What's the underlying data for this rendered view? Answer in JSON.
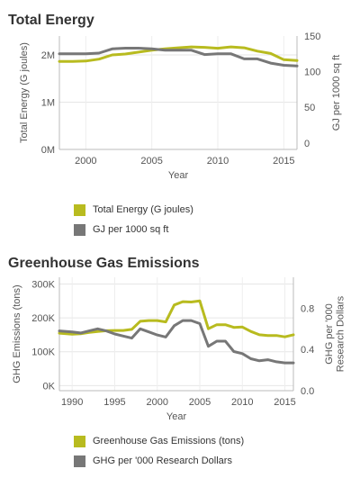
{
  "charts": [
    {
      "title": "Total Energy",
      "chart_data": {
        "type": "line",
        "title": "Total Energy",
        "xlabel": "Year",
        "ylabel_left": "Total Energy (G joules)",
        "ylabel_right": "GJ per 1000 sq ft",
        "xlim": [
          1998,
          2016
        ],
        "ylim_left": [
          0,
          2400000
        ],
        "ylim_right": [
          -9,
          150
        ],
        "x_ticks": [
          2000,
          2005,
          2010,
          2015
        ],
        "y_ticks_left": [
          {
            "v": 0,
            "label": "0M"
          },
          {
            "v": 1000000,
            "label": "1M"
          },
          {
            "v": 2000000,
            "label": "2M"
          }
        ],
        "y_ticks_right": [
          {
            "v": 0,
            "label": "0"
          },
          {
            "v": 50,
            "label": "50"
          },
          {
            "v": 100,
            "label": "100"
          },
          {
            "v": 150,
            "label": "150"
          }
        ],
        "grid": true,
        "series": [
          {
            "name": "Total Energy (G joules)",
            "axis": "left",
            "color": "#b8bb1f",
            "x": [
              1998,
              1999,
              2000,
              2001,
              2002,
              2003,
              2004,
              2005,
              2006,
              2007,
              2008,
              2009,
              2010,
              2011,
              2012,
              2013,
              2014,
              2015,
              2016
            ],
            "y": [
              1860000,
              1860000,
              1870000,
              1910000,
              2000000,
              2020000,
              2060000,
              2100000,
              2130000,
              2150000,
              2170000,
              2160000,
              2140000,
              2170000,
              2150000,
              2080000,
              2030000,
              1900000,
              1880000
            ]
          },
          {
            "name": "GJ per 1000 sq ft",
            "axis": "right",
            "color": "#777777",
            "x": [
              1998,
              1999,
              2000,
              2001,
              2002,
              2003,
              2004,
              2005,
              2006,
              2007,
              2008,
              2009,
              2010,
              2011,
              2012,
              2013,
              2014,
              2015,
              2016
            ],
            "y": [
              125,
              125,
              125,
              126,
              132,
              133,
              133,
              132,
              130,
              130,
              130,
              124,
              125,
              125,
              118,
              118,
              112,
              109,
              108
            ]
          }
        ]
      },
      "legend": [
        {
          "label": "Total Energy (G joules)",
          "color": "#b8bb1f"
        },
        {
          "label": "GJ per 1000 sq ft",
          "color": "#777777"
        }
      ]
    },
    {
      "title": "Greenhouse Gas Emissions",
      "chart_data": {
        "type": "line",
        "title": "Greenhouse Gas Emissions",
        "xlabel": "Year",
        "ylabel_left": "GHG Emissions (tons)",
        "ylabel_right": "GHG per '000 Research Dollars",
        "xlim": [
          1988.5,
          2016
        ],
        "ylim_left": [
          -15000,
          320000
        ],
        "ylim_right": [
          0,
          1.1
        ],
        "x_ticks": [
          1990,
          1995,
          2000,
          2005,
          2010,
          2015
        ],
        "y_ticks_left": [
          {
            "v": 0,
            "label": "0K"
          },
          {
            "v": 100000,
            "label": "100K"
          },
          {
            "v": 200000,
            "label": "200K"
          },
          {
            "v": 300000,
            "label": "300K"
          }
        ],
        "y_ticks_right": [
          {
            "v": 0,
            "label": "0.0"
          },
          {
            "v": 0.4,
            "label": "0.4"
          },
          {
            "v": 0.8,
            "label": "0.8"
          }
        ],
        "grid": true,
        "series": [
          {
            "name": "Greenhouse Gas Emissions (tons)",
            "axis": "left",
            "color": "#b8bb1f",
            "x": [
              1988.5,
              1990,
              1991,
              1992,
              1993,
              1994,
              1995,
              1996,
              1997,
              1998,
              1999,
              2000,
              2001,
              2002,
              2003,
              2004,
              2005,
              2006,
              2007,
              2008,
              2009,
              2010,
              2011,
              2012,
              2013,
              2014,
              2015,
              2016
            ],
            "y": [
              155000,
              152000,
              153000,
              157000,
              160000,
              162000,
              163000,
              163000,
              166000,
              190000,
              192000,
              192000,
              188000,
              238000,
              248000,
              247000,
              250000,
              168000,
              180000,
              180000,
              172000,
              173000,
              160000,
              150000,
              148000,
              148000,
              144000,
              150000
            ]
          },
          {
            "name": "GHG per '000 Research Dollars",
            "axis": "right",
            "color": "#777777",
            "x": [
              1988.5,
              1990,
              1991,
              1992,
              1993,
              1994,
              1995,
              1996,
              1997,
              1998,
              1999,
              2000,
              2001,
              2002,
              2003,
              2004,
              2005,
              2006,
              2007,
              2008,
              2009,
              2010,
              2011,
              2012,
              2013,
              2014,
              2015,
              2016
            ],
            "y": [
              0.58,
              0.57,
              0.56,
              0.58,
              0.6,
              0.58,
              0.55,
              0.53,
              0.51,
              0.6,
              0.57,
              0.54,
              0.52,
              0.63,
              0.68,
              0.68,
              0.65,
              0.43,
              0.48,
              0.48,
              0.38,
              0.36,
              0.31,
              0.29,
              0.3,
              0.28,
              0.27,
              0.27
            ]
          }
        ]
      },
      "legend": [
        {
          "label": "Greenhouse Gas Emissions (tons)",
          "color": "#b8bb1f"
        },
        {
          "label": "GHG per '000 Research Dollars",
          "color": "#777777"
        }
      ]
    }
  ]
}
